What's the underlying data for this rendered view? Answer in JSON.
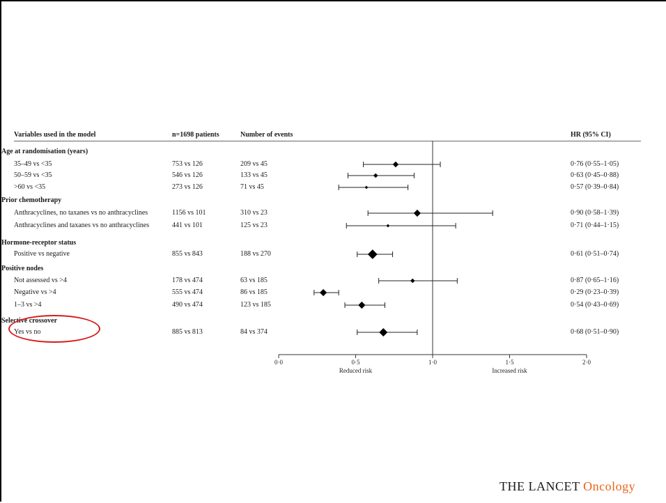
{
  "headers": {
    "variables": "Variables used in the model",
    "patients": "n=1698 patients",
    "events": "Number of events",
    "hr": "HR (95% CI)"
  },
  "groups": [
    {
      "label": "Age at randomisation (years)",
      "rows": [
        {
          "label": "35–49 vs <35",
          "n": "753 vs 126",
          "events": "209 vs 45",
          "hr_text": "0·76 (0·55–1·05)"
        },
        {
          "label": "50–59 vs <35",
          "n": "546 vs 126",
          "events": "133 vs 45",
          "hr_text": "0·63 (0·45–0·88)"
        },
        {
          "label": ">60 vs <35",
          "n": "273 vs 126",
          "events": "71 vs 45",
          "hr_text": "0·57 (0·39–0·84)"
        }
      ]
    },
    {
      "label": "Prior chemotherapy",
      "rows": [
        {
          "label": "Anthracyclines, no taxanes vs no anthracyclines",
          "n": "1156 vs 101",
          "events": "310 vs 23",
          "hr_text": "0·90 (0·58–1·39)"
        },
        {
          "label": "Anthracyclines and taxanes vs no anthracyclines",
          "n": "441 vs 101",
          "events": "125 vs 23",
          "hr_text": "0·71 (0·44–1·15)"
        }
      ]
    },
    {
      "label": "Hormone-receptor status",
      "rows": [
        {
          "label": "Positive vs negative",
          "n": "855 vs 843",
          "events": "188 vs 270",
          "hr_text": "0·61 (0·51–0·74)"
        }
      ]
    },
    {
      "label": "Positive nodes",
      "rows": [
        {
          "label": "Not assessed vs >4",
          "n": "178 vs 474",
          "events": "63 vs 185",
          "hr_text": "0·87 (0·65–1·16)"
        },
        {
          "label": "Negative vs >4",
          "n": "555 vs 474",
          "events": "86 vs 185",
          "hr_text": "0·29 (0·23–0·39)"
        },
        {
          "label": "1–3 vs >4",
          "n": "490 vs 474",
          "events": "123 vs 185",
          "hr_text": "0·54 (0·43–0·69)"
        }
      ]
    },
    {
      "label": "Selective crossover",
      "rows": [
        {
          "label": "Yes vs no",
          "n": "885 vs 813",
          "events": "84 vs 374",
          "hr_text": "0·68 (0·51–0·90)"
        }
      ]
    }
  ],
  "chart_data": {
    "type": "forest",
    "x_ticks": [
      0,
      0.5,
      1.0,
      1.5,
      2.0
    ],
    "x_tick_labels": [
      "0·0",
      "0·5",
      "1·0",
      "1·5",
      "2·0"
    ],
    "xlim": [
      0,
      2.0
    ],
    "reference_line": 1.0,
    "axis_labels": {
      "left": "Reduced risk",
      "right": "Increased risk"
    },
    "estimates": [
      {
        "hr": 0.76,
        "lo": 0.55,
        "hi": 1.05,
        "weight": 3
      },
      {
        "hr": 0.63,
        "lo": 0.45,
        "hi": 0.88,
        "weight": 2
      },
      {
        "hr": 0.57,
        "lo": 0.39,
        "hi": 0.84,
        "weight": 1
      },
      {
        "hr": 0.9,
        "lo": 0.58,
        "hi": 1.39,
        "weight": 4
      },
      {
        "hr": 0.71,
        "lo": 0.44,
        "hi": 1.15,
        "weight": 1
      },
      {
        "hr": 0.61,
        "lo": 0.51,
        "hi": 0.74,
        "weight": 6
      },
      {
        "hr": 0.87,
        "lo": 0.65,
        "hi": 1.16,
        "weight": 2
      },
      {
        "hr": 0.29,
        "lo": 0.23,
        "hi": 0.39,
        "weight": 4
      },
      {
        "hr": 0.54,
        "lo": 0.43,
        "hi": 0.69,
        "weight": 4
      },
      {
        "hr": 0.68,
        "lo": 0.51,
        "hi": 0.9,
        "weight": 5
      }
    ]
  },
  "logo": {
    "brand": "THE LANCET",
    "accent": "Oncology",
    "accent_color": "#e8641b"
  },
  "highlight": {
    "color": "#d7191c"
  }
}
